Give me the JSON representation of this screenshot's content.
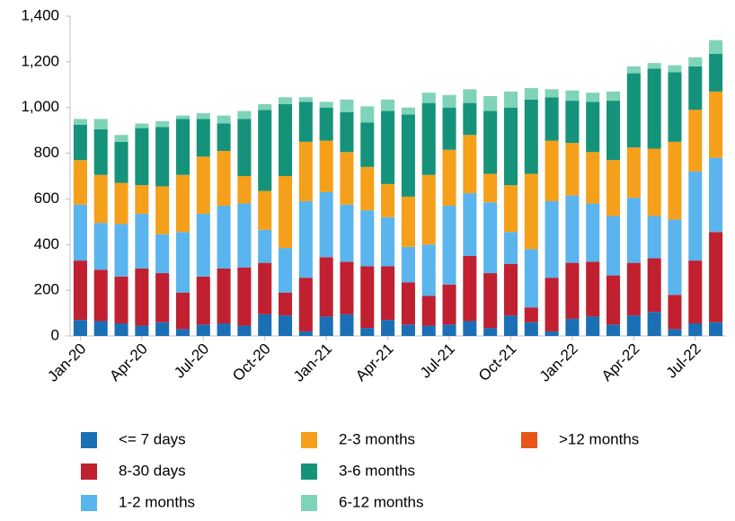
{
  "chart_data": {
    "type": "stacked-bar",
    "categories": [
      "Jan-20",
      null,
      null,
      "Apr-20",
      null,
      null,
      "Jul-20",
      null,
      null,
      "Oct-20",
      null,
      null,
      "Jan-21",
      null,
      null,
      "Apr-21",
      null,
      null,
      "Jul-21",
      null,
      null,
      "Oct-21",
      null,
      null,
      "Jan-22",
      null,
      null,
      "Apr-22",
      null,
      null,
      "Jul-22",
      null
    ],
    "series": [
      {
        "name": "<= 7 days",
        "color": "#1a6fb5",
        "values": [
          70,
          65,
          55,
          45,
          60,
          30,
          50,
          55,
          45,
          95,
          90,
          20,
          85,
          95,
          35,
          70,
          50,
          45,
          50,
          65,
          35,
          90,
          60,
          20,
          75,
          85,
          50,
          90,
          105,
          30,
          55,
          60
        ]
      },
      {
        "name": "8-30 days",
        "color": "#c0202f",
        "values": [
          260,
          225,
          205,
          250,
          215,
          160,
          210,
          240,
          255,
          225,
          100,
          235,
          260,
          230,
          270,
          235,
          185,
          130,
          175,
          285,
          240,
          225,
          65,
          235,
          245,
          240,
          215,
          230,
          235,
          150,
          275,
          395
        ]
      },
      {
        "name": "1-2 months",
        "color": "#5ab4ee",
        "values": [
          245,
          205,
          230,
          240,
          170,
          265,
          275,
          275,
          280,
          145,
          195,
          335,
          285,
          250,
          245,
          215,
          155,
          225,
          345,
          275,
          310,
          140,
          255,
          335,
          295,
          255,
          260,
          285,
          185,
          330,
          390,
          325
        ]
      },
      {
        "name": "2-3 months",
        "color": "#f5a01a",
        "values": [
          195,
          210,
          180,
          125,
          210,
          250,
          250,
          240,
          120,
          170,
          315,
          260,
          225,
          230,
          190,
          145,
          220,
          305,
          245,
          255,
          125,
          205,
          330,
          265,
          230,
          225,
          245,
          220,
          295,
          340,
          270,
          290
        ]
      },
      {
        "name": "3-6 months",
        "color": "#15937a",
        "values": [
          155,
          200,
          180,
          250,
          260,
          245,
          165,
          120,
          250,
          355,
          315,
          175,
          145,
          175,
          195,
          320,
          360,
          315,
          185,
          140,
          275,
          340,
          325,
          190,
          185,
          220,
          260,
          325,
          350,
          305,
          190,
          165
        ]
      },
      {
        "name": "6-12 months",
        "color": "#7fd3b8",
        "values": [
          25,
          45,
          30,
          20,
          25,
          15,
          25,
          35,
          35,
          25,
          30,
          20,
          25,
          55,
          70,
          50,
          30,
          45,
          55,
          60,
          65,
          70,
          50,
          35,
          45,
          40,
          40,
          30,
          25,
          30,
          40,
          60
        ]
      },
      {
        "name": ">12 months",
        "color": "#e8541a",
        "values": [
          0,
          0,
          0,
          0,
          0,
          0,
          0,
          0,
          0,
          0,
          0,
          0,
          0,
          0,
          0,
          0,
          0,
          0,
          0,
          0,
          0,
          0,
          0,
          0,
          0,
          0,
          0,
          0,
          0,
          0,
          0,
          0
        ]
      }
    ],
    "ylim": [
      0,
      1400
    ],
    "yticks": [
      0,
      200,
      400,
      600,
      800,
      {
        "value": 1000,
        "label": "1,000"
      },
      {
        "value": 1200,
        "label": "1,200"
      },
      {
        "value": 1400,
        "label": "1,400"
      }
    ]
  }
}
